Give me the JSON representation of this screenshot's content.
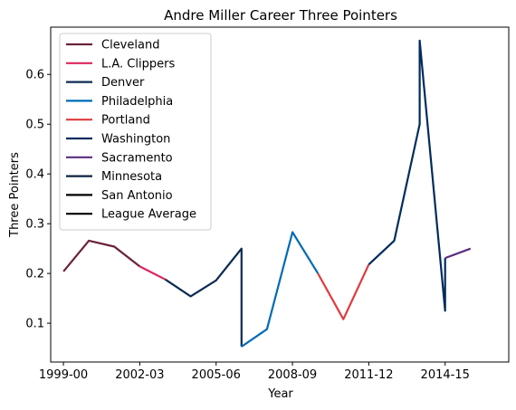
{
  "chart_data": {
    "type": "line",
    "title": "Andre Miller Career Three Pointers",
    "xlabel": "Year",
    "ylabel": "Three Pointers",
    "x_tick_labels": [
      "1999-00",
      "2002-03",
      "2005-06",
      "2008-09",
      "2011-12",
      "2014-15"
    ],
    "y_tick_labels": [
      "0.1",
      "0.2",
      "0.3",
      "0.4",
      "0.5",
      "0.6"
    ],
    "y_ticks": [
      0.1,
      0.2,
      0.3,
      0.4,
      0.5,
      0.6
    ],
    "xlim": [
      1998.5,
      2016.5
    ],
    "ylim": [
      0.022,
      0.695
    ],
    "legend_position": "upper-left",
    "series": [
      {
        "name": "Cleveland",
        "color": "#6a2338",
        "points": [
          [
            1999,
            0.204
          ],
          [
            2000,
            0.266
          ],
          [
            2001,
            0.254
          ],
          [
            2002,
            0.214
          ]
        ]
      },
      {
        "name": "L.A. Clippers",
        "color": "#e0245e",
        "points": [
          [
            2002,
            0.214
          ],
          [
            2003,
            0.188
          ]
        ]
      },
      {
        "name": "Denver",
        "color": "#0d2b52",
        "points": [
          [
            2003,
            0.188
          ],
          [
            2004,
            0.154
          ],
          [
            2005,
            0.186
          ],
          [
            2006,
            0.25
          ],
          [
            2006,
            0.053
          ]
        ]
      },
      {
        "name": "Philadelphia",
        "color": "#006bb6",
        "points": [
          [
            2006,
            0.053
          ],
          [
            2007,
            0.088
          ],
          [
            2008,
            0.283
          ],
          [
            2009,
            0.2
          ]
        ]
      },
      {
        "name": "Portland",
        "color": "#e03a3e",
        "points": [
          [
            2009,
            0.2
          ],
          [
            2010,
            0.108
          ],
          [
            2011,
            0.218
          ]
        ]
      },
      {
        "name": "Washington",
        "color": "#002b5c",
        "points": [
          [
            2011,
            0.218
          ],
          [
            2012,
            0.266
          ],
          [
            2013,
            0.5
          ],
          [
            2013,
            0.668
          ],
          [
            2014,
            0.125
          ],
          [
            2014,
            0.231
          ]
        ]
      },
      {
        "name": "Sacramento",
        "color": "#5a2d81",
        "points": [
          [
            2014,
            0.231
          ],
          [
            2015,
            0.25
          ]
        ]
      },
      {
        "name": "Minnesota",
        "color": "#0c2340",
        "points": []
      },
      {
        "name": "San Antonio",
        "color": "#000000",
        "points": []
      },
      {
        "name": "League Average",
        "color": "#000000",
        "points": []
      }
    ]
  }
}
